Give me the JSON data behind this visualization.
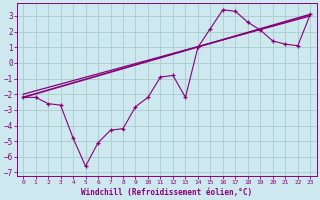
{
  "xlabel": "Windchill (Refroidissement éolien,°C)",
  "bg_color": "#cde8ee",
  "grid_color": "#aacccc",
  "line_color": "#880077",
  "xlim": [
    -0.5,
    23.5
  ],
  "ylim": [
    -7.2,
    3.8
  ],
  "xticks": [
    0,
    1,
    2,
    3,
    4,
    5,
    6,
    7,
    8,
    9,
    10,
    11,
    12,
    13,
    14,
    15,
    16,
    17,
    18,
    19,
    20,
    21,
    22,
    23
  ],
  "yticks": [
    -7,
    -6,
    -5,
    -4,
    -3,
    -2,
    -1,
    0,
    1,
    2,
    3
  ],
  "main_x": [
    0,
    1,
    2,
    3,
    4,
    5,
    6,
    7,
    8,
    9,
    10,
    11,
    12,
    13,
    14,
    15,
    16,
    17,
    18,
    19,
    20,
    21,
    22,
    23
  ],
  "main_y": [
    -2.2,
    -2.2,
    -2.6,
    -2.7,
    -4.8,
    -6.6,
    -5.1,
    -4.3,
    -4.2,
    -2.8,
    -2.2,
    -0.9,
    -0.8,
    -2.2,
    1.0,
    2.2,
    3.4,
    3.3,
    2.6,
    2.1,
    1.4,
    1.2,
    1.1,
    3.1
  ],
  "reg1_x0": 0,
  "reg1_y0": -2.2,
  "reg1_x1": 23,
  "reg1_y1": 3.1,
  "reg2_x0": 0,
  "reg2_y0": -2.0,
  "reg2_x1": 23,
  "reg2_y1": 3.0
}
